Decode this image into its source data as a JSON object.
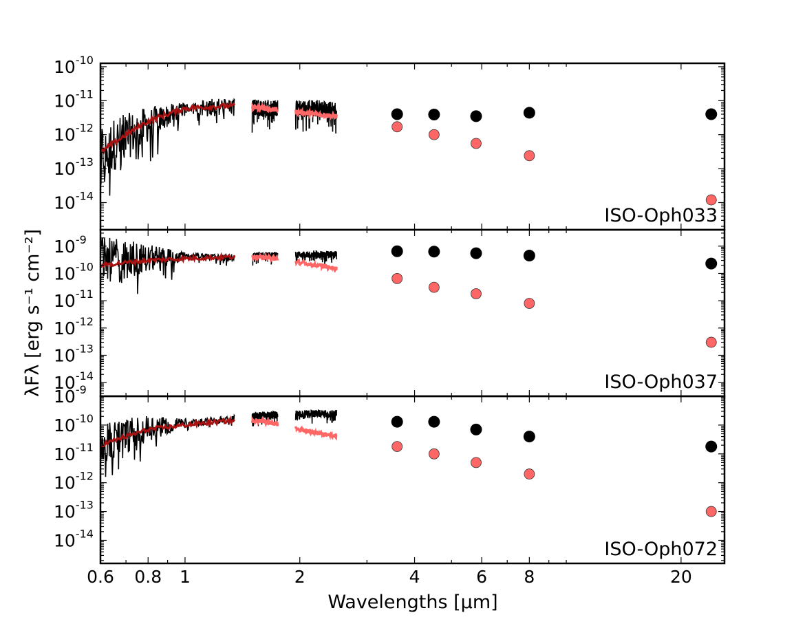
{
  "figure": {
    "xlabel": "Wavelengths [μm]",
    "ylabel": "λFλ  [erg s⁻¹ cm⁻²]"
  },
  "chart_data": {
    "type": "scatter",
    "xscale": "log",
    "yscale": "log",
    "xlim": [
      0.6,
      26
    ],
    "xticks": [
      {
        "value": 0.6,
        "label": "0.6"
      },
      {
        "value": 0.8,
        "label": "0.8"
      },
      {
        "value": 1,
        "label": "1"
      },
      {
        "value": 2,
        "label": "2"
      },
      {
        "value": 4,
        "label": "4"
      },
      {
        "value": 6,
        "label": "6"
      },
      {
        "value": 8,
        "label": "8"
      },
      {
        "value": 20,
        "label": "20"
      }
    ],
    "colors": {
      "observed": "#000000",
      "dereddened": "#ff6666",
      "spectrum_dark": "#000000",
      "spectrum_red": "#aa1111"
    },
    "panels": [
      {
        "label": "ISO-Oph033",
        "ylim_exp": [
          -14.8,
          -9.9
        ],
        "yticks": [
          {
            "exp": -14,
            "mant": "10",
            "sup": "-14"
          },
          {
            "exp": -13,
            "mant": "10",
            "sup": "-13"
          },
          {
            "exp": -12,
            "mant": "10",
            "sup": "-12"
          },
          {
            "exp": -11,
            "mant": "10",
            "sup": "-11"
          },
          {
            "exp": -10,
            "mant": "10",
            "sup": "-10"
          }
        ],
        "photometry_observed": [
          [
            3.6,
            4e-12
          ],
          [
            4.5,
            3.9e-12
          ],
          [
            5.8,
            3.5e-12
          ],
          [
            8.0,
            4.4e-12
          ],
          [
            24.0,
            4e-12
          ]
        ],
        "photometry_dereddened": [
          [
            3.6,
            1.7e-12
          ],
          [
            4.5,
            1e-12
          ],
          [
            5.8,
            5.5e-13
          ],
          [
            8.0,
            2.4e-13
          ],
          [
            24.0,
            1.2e-14
          ]
        ],
        "spectrum": {
          "segments": [
            [
              0.6,
              1.35
            ],
            [
              1.5,
              1.75
            ],
            [
              1.95,
              2.5
            ]
          ],
          "observed_level": [
            [
              0.6,
              3e-13
            ],
            [
              0.8,
              2e-12
            ],
            [
              1.0,
              6e-12
            ],
            [
              1.3,
              7e-12
            ],
            [
              1.6,
              6e-12
            ],
            [
              2.2,
              6e-12
            ],
            [
              2.5,
              5e-12
            ]
          ],
          "model_level": [
            [
              0.6,
              3e-13
            ],
            [
              0.7,
              1e-12
            ],
            [
              0.8,
              2.5e-12
            ],
            [
              0.9,
              4e-12
            ],
            [
              1.0,
              6e-12
            ],
            [
              1.3,
              7e-12
            ],
            [
              1.6,
              6e-12
            ],
            [
              2.0,
              4.5e-12
            ],
            [
              2.5,
              3.5e-12
            ]
          ],
          "noise_dex_blue": 1.6,
          "noise_dex_red": 0.5
        }
      },
      {
        "label": "ISO-Oph037",
        "ylim_exp": [
          -14.5,
          -8.4
        ],
        "yticks": [
          {
            "exp": -14,
            "mant": "10",
            "sup": "-14"
          },
          {
            "exp": -13,
            "mant": "10",
            "sup": "-13"
          },
          {
            "exp": -12,
            "mant": "10",
            "sup": "-12"
          },
          {
            "exp": -11,
            "mant": "10",
            "sup": "-11"
          },
          {
            "exp": -10,
            "mant": "10",
            "sup": "-10"
          },
          {
            "exp": -9,
            "mant": "10",
            "sup": "-9"
          }
        ],
        "photometry_observed": [
          [
            3.6,
            6.5e-10
          ],
          [
            4.5,
            6.3e-10
          ],
          [
            5.8,
            5.5e-10
          ],
          [
            8.0,
            4.5e-10
          ],
          [
            24.0,
            2.3e-10
          ]
        ],
        "photometry_dereddened": [
          [
            3.6,
            6.5e-11
          ],
          [
            4.5,
            3.1e-11
          ],
          [
            5.8,
            1.8e-11
          ],
          [
            8.0,
            8e-12
          ],
          [
            24.0,
            3e-13
          ]
        ],
        "spectrum": {
          "segments": [
            [
              0.6,
              1.35
            ],
            [
              1.5,
              1.75
            ],
            [
              1.95,
              2.5
            ]
          ],
          "observed_level": [
            [
              0.6,
              3e-10
            ],
            [
              1.0,
              4e-10
            ],
            [
              1.3,
              4e-10
            ],
            [
              1.6,
              4.5e-10
            ],
            [
              2.2,
              5e-10
            ],
            [
              2.5,
              5e-10
            ]
          ],
          "model_level": [
            [
              0.6,
              2e-10
            ],
            [
              0.8,
              3e-10
            ],
            [
              1.0,
              3.5e-10
            ],
            [
              1.3,
              4e-10
            ],
            [
              1.6,
              4e-10
            ],
            [
              2.0,
              2.5e-10
            ],
            [
              2.5,
              1.5e-10
            ]
          ],
          "noise_dex_blue": 1.6,
          "noise_dex_red": 0.25
        }
      },
      {
        "label": "ISO-Oph072",
        "ylim_exp": [
          -14.8,
          -9.0
        ],
        "yticks": [
          {
            "exp": -14,
            "mant": "10",
            "sup": "-14"
          },
          {
            "exp": -13,
            "mant": "10",
            "sup": "-13"
          },
          {
            "exp": -12,
            "mant": "10",
            "sup": "-12"
          },
          {
            "exp": -11,
            "mant": "10",
            "sup": "-11"
          },
          {
            "exp": -10,
            "mant": "10",
            "sup": "-10"
          },
          {
            "exp": -9,
            "mant": "10",
            "sup": "-9"
          }
        ],
        "photometry_observed": [
          [
            3.6,
            1.3e-10
          ],
          [
            4.5,
            1.3e-10
          ],
          [
            5.8,
            7e-11
          ],
          [
            8.0,
            4e-11
          ],
          [
            24.0,
            1.8e-11
          ]
        ],
        "photometry_dereddened": [
          [
            3.6,
            1.8e-11
          ],
          [
            4.5,
            1e-11
          ],
          [
            5.8,
            5e-12
          ],
          [
            8.0,
            2e-12
          ],
          [
            24.0,
            1e-13
          ]
        ],
        "spectrum": {
          "segments": [
            [
              0.6,
              1.35
            ],
            [
              1.5,
              1.75
            ],
            [
              1.95,
              2.5
            ]
          ],
          "observed_level": [
            [
              0.6,
              2e-11
            ],
            [
              0.8,
              8e-11
            ],
            [
              1.0,
              1.2e-10
            ],
            [
              1.3,
              1.6e-10
            ],
            [
              1.6,
              2.2e-10
            ],
            [
              2.2,
              2.5e-10
            ],
            [
              2.5,
              2.5e-10
            ]
          ],
          "model_level": [
            [
              0.6,
              2e-11
            ],
            [
              0.7,
              4e-11
            ],
            [
              0.8,
              7e-11
            ],
            [
              1.0,
              1e-10
            ],
            [
              1.3,
              1.4e-10
            ],
            [
              1.6,
              1.4e-10
            ],
            [
              2.0,
              7e-11
            ],
            [
              2.5,
              4e-11
            ]
          ],
          "noise_dex_blue": 1.4,
          "noise_dex_red": 0.25
        }
      }
    ]
  }
}
